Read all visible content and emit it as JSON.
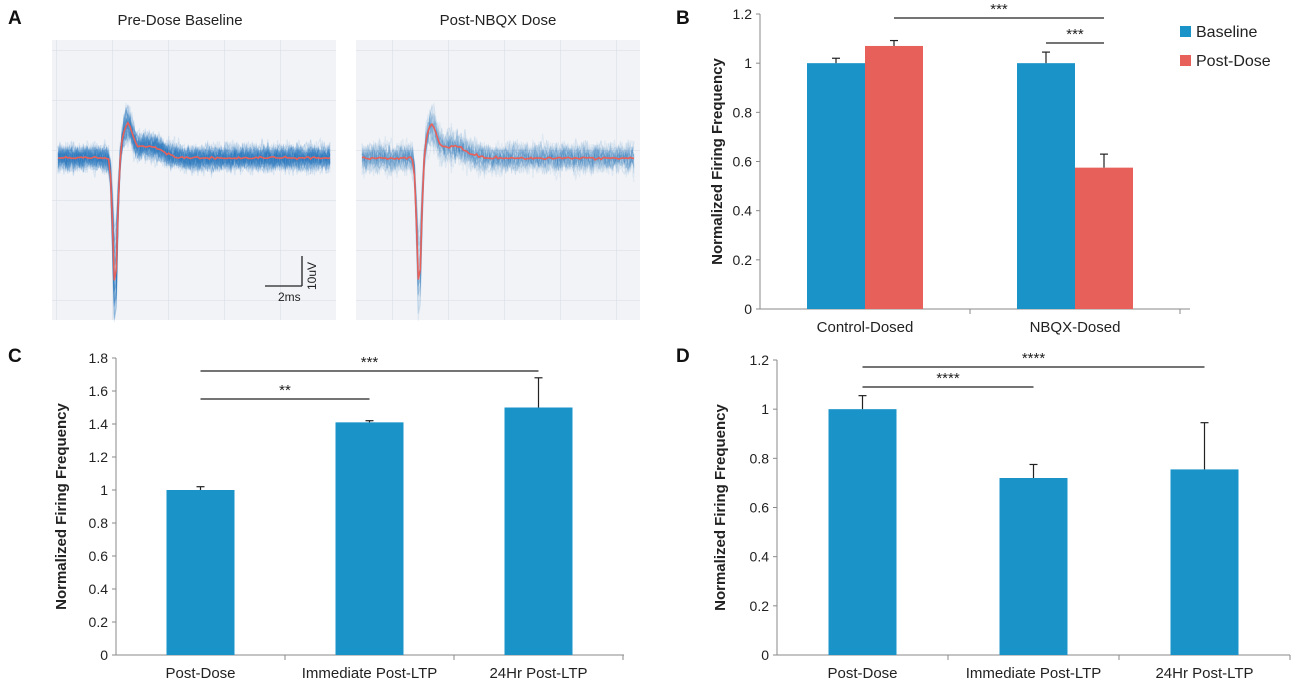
{
  "panels": {
    "A": {
      "letter": "A",
      "waveforms": [
        {
          "title": "Pre-Dose Baseline"
        },
        {
          "title": "Post-NBQX Dose"
        }
      ],
      "scalebar": {
        "y_label": "10uV",
        "x_label": "2ms"
      },
      "colors": {
        "traces": "#2b7bbf",
        "mean": "#e8605a"
      }
    },
    "B": {
      "letter": "B"
    },
    "C": {
      "letter": "C"
    },
    "D": {
      "letter": "D"
    }
  },
  "chart_data": [
    {
      "panel": "B",
      "type": "bar",
      "categories": [
        "Control-Dosed",
        "NBQX-Dosed"
      ],
      "series": [
        {
          "name": "Baseline",
          "values": [
            1.0,
            1.0
          ],
          "errors": [
            0.02,
            0.045
          ],
          "color": "#1a93c9"
        },
        {
          "name": "Post-Dose",
          "values": [
            1.07,
            0.575
          ],
          "errors": [
            0.022,
            0.055
          ],
          "color": "#e8605a"
        }
      ],
      "ylabel": "Normalized Firing Frequency",
      "ylim": [
        0,
        1.2
      ],
      "yticks": [
        0,
        0.2,
        0.4,
        0.6,
        0.8,
        1,
        1.2
      ],
      "legend": "top-right",
      "significance": [
        {
          "from": [
            0,
            1
          ],
          "to": [
            1,
            1
          ],
          "label": "***"
        },
        {
          "from": [
            1,
            0
          ],
          "to": [
            1,
            1
          ],
          "label": "***"
        }
      ]
    },
    {
      "panel": "C",
      "type": "bar",
      "categories": [
        "Post-Dose",
        "Immediate Post-LTP",
        "24Hr Post-LTP"
      ],
      "series": [
        {
          "values": [
            1.0,
            1.41,
            1.5
          ],
          "errors": [
            0.02,
            0.01,
            0.18
          ],
          "color": "#1a93c9"
        }
      ],
      "ylabel": "Normalized Firing Frequency",
      "ylim": [
        0,
        1.8
      ],
      "yticks": [
        0,
        0.2,
        0.4,
        0.6,
        0.8,
        1,
        1.2,
        1.4,
        1.6,
        1.8
      ],
      "significance": [
        {
          "from": 0,
          "to": 1,
          "label": "**"
        },
        {
          "from": 0,
          "to": 2,
          "label": "***"
        }
      ]
    },
    {
      "panel": "D",
      "type": "bar",
      "categories": [
        "Post-Dose",
        "Immediate Post-LTP",
        "24Hr Post-LTP"
      ],
      "series": [
        {
          "values": [
            1.0,
            0.72,
            0.755
          ],
          "errors": [
            0.055,
            0.055,
            0.19
          ],
          "color": "#1a93c9"
        }
      ],
      "ylabel": "Normalized Firing Frequency",
      "ylim": [
        0,
        1.2
      ],
      "yticks": [
        0,
        0.2,
        0.4,
        0.6,
        0.8,
        1,
        1.2
      ],
      "significance": [
        {
          "from": 0,
          "to": 1,
          "label": "****"
        },
        {
          "from": 0,
          "to": 2,
          "label": "****"
        }
      ]
    }
  ]
}
